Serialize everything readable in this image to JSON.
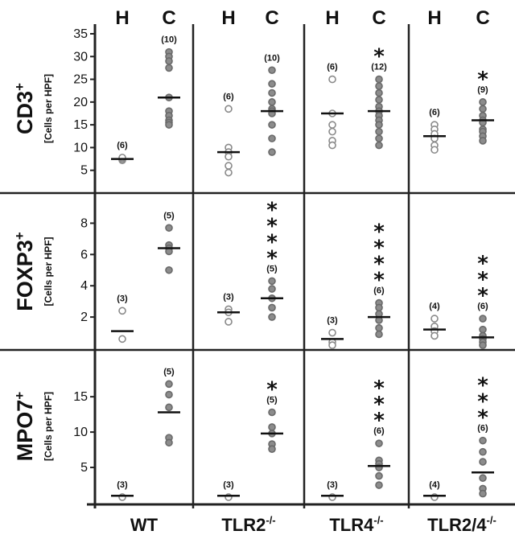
{
  "chart_data": {
    "type": "scatter",
    "title": "",
    "columns": [
      "H",
      "C"
    ],
    "groups": [
      {
        "name": "WT"
      },
      {
        "name": "TLR2",
        "sup": "-/-"
      },
      {
        "name": "TLR4",
        "sup": "-/-"
      },
      {
        "name": "TLR2/4",
        "sup": "-/-"
      }
    ],
    "legend": "none",
    "grid": false,
    "panels": [
      {
        "label": "CD3",
        "label_sup": "+",
        "unit": "[Cells per HPF]",
        "ylim": [
          0,
          35
        ],
        "ticks": [
          5,
          10,
          15,
          20,
          25,
          30,
          35
        ],
        "series": [
          {
            "group": "WT",
            "col": "H",
            "n": "(6)",
            "stars": 0,
            "mean": 7.5,
            "values": [
              7.2,
              7.5,
              7.8
            ]
          },
          {
            "group": "WT",
            "col": "C",
            "n": "(10)",
            "stars": 0,
            "mean": 21.0,
            "values": [
              31,
              30,
              29,
              27.5,
              21,
              18,
              17,
              16,
              15.5,
              15
            ]
          },
          {
            "group": "TLR2",
            "col": "H",
            "n": "(6)",
            "stars": 0,
            "mean": 9.0,
            "values": [
              18.5,
              10,
              9,
              8,
              6,
              4.5
            ]
          },
          {
            "group": "TLR2",
            "col": "C",
            "n": "(10)",
            "stars": 0,
            "mean": 18.0,
            "values": [
              27,
              24,
              22,
              20,
              18.5,
              18,
              17.5,
              15,
              12,
              9
            ]
          },
          {
            "group": "TLR4",
            "col": "H",
            "n": "(6)",
            "stars": 0,
            "mean": 17.5,
            "values": [
              25,
              17.5,
              15,
              13.5,
              11.5,
              10.5
            ]
          },
          {
            "group": "TLR4",
            "col": "C",
            "n": "(12)",
            "stars": 1,
            "mean": 18.0,
            "values": [
              25,
              23.5,
              22,
              20.5,
              19,
              18,
              17,
              16,
              15,
              13.5,
              12,
              10.5
            ]
          },
          {
            "group": "TLR2/4",
            "col": "H",
            "n": "(6)",
            "stars": 0,
            "mean": 12.5,
            "values": [
              15,
              14,
              13,
              12,
              10.5,
              9.5
            ]
          },
          {
            "group": "TLR2/4",
            "col": "C",
            "n": "(9)",
            "stars": 1,
            "mean": 16.0,
            "values": [
              20,
              18.5,
              17,
              16,
              15.5,
              14,
              13.5,
              12.5,
              11.5
            ]
          }
        ]
      },
      {
        "label": "FOXP3",
        "label_sup": "+",
        "unit": "[Cells per HPF]",
        "ylim": [
          0,
          9
        ],
        "ticks": [
          2,
          4,
          6,
          8
        ],
        "series": [
          {
            "group": "WT",
            "col": "H",
            "n": "(3)",
            "stars": 0,
            "mean": 1.1,
            "values": [
              2.4,
              0.6
            ]
          },
          {
            "group": "WT",
            "col": "C",
            "n": "(5)",
            "stars": 0,
            "mean": 6.4,
            "values": [
              7.7,
              6.6,
              6.4,
              6.2,
              5.0
            ]
          },
          {
            "group": "TLR2",
            "col": "H",
            "n": "(3)",
            "stars": 0,
            "mean": 2.3,
            "values": [
              2.5,
              2.3,
              1.7
            ]
          },
          {
            "group": "TLR2",
            "col": "C",
            "n": "(5)",
            "stars": 4,
            "mean": 3.2,
            "values": [
              4.3,
              3.8,
              3.2,
              2.6,
              2.0
            ]
          },
          {
            "group": "TLR4",
            "col": "H",
            "n": "(3)",
            "stars": 0,
            "mean": 0.6,
            "values": [
              1.0,
              0.4,
              0.2
            ]
          },
          {
            "group": "TLR4",
            "col": "C",
            "n": "(6)",
            "stars": 4,
            "mean": 2.0,
            "values": [
              2.9,
              2.6,
              2.2,
              1.8,
              1.3,
              0.9
            ]
          },
          {
            "group": "TLR2/4",
            "col": "H",
            "n": "(4)",
            "stars": 0,
            "mean": 1.2,
            "values": [
              1.9,
              1.4,
              1.1,
              0.8
            ]
          },
          {
            "group": "TLR2/4",
            "col": "C",
            "n": "(6)",
            "stars": 3,
            "mean": 0.7,
            "values": [
              1.9,
              1.2,
              0.8,
              0.6,
              0.4,
              0.2
            ]
          }
        ]
      },
      {
        "label": "MPO7",
        "label_sup": "+",
        "unit": "[Cells per HPF]",
        "ylim": [
          0,
          19
        ],
        "ticks": [
          5,
          10,
          15
        ],
        "series": [
          {
            "group": "WT",
            "col": "H",
            "n": "(3)",
            "stars": 0,
            "mean": 1.0,
            "values": [
              0.8
            ]
          },
          {
            "group": "WT",
            "col": "C",
            "n": "(5)",
            "stars": 0,
            "mean": 12.8,
            "values": [
              16.8,
              15.3,
              13.5,
              9.2,
              8.5
            ]
          },
          {
            "group": "TLR2",
            "col": "H",
            "n": "(3)",
            "stars": 0,
            "mean": 1.0,
            "values": [
              0.8
            ]
          },
          {
            "group": "TLR2",
            "col": "C",
            "n": "(5)",
            "stars": 1,
            "mean": 9.8,
            "values": [
              12.8,
              10.7,
              9.8,
              8.3,
              7.6
            ]
          },
          {
            "group": "TLR4",
            "col": "H",
            "n": "(3)",
            "stars": 0,
            "mean": 1.0,
            "values": [
              0.8
            ]
          },
          {
            "group": "TLR4",
            "col": "C",
            "n": "(6)",
            "stars": 3,
            "mean": 5.2,
            "values": [
              8.4,
              6.0,
              5.5,
              5.0,
              3.8,
              2.5
            ]
          },
          {
            "group": "TLR2/4",
            "col": "H",
            "n": "(4)",
            "stars": 0,
            "mean": 1.0,
            "values": [
              0.8
            ]
          },
          {
            "group": "TLR2/4",
            "col": "C",
            "n": "(6)",
            "stars": 3,
            "mean": 4.3,
            "values": [
              8.8,
              7.2,
              5.8,
              3.5,
              2.0,
              1.3
            ]
          }
        ]
      }
    ]
  },
  "colors": {
    "healthy_fill": "#ffffff",
    "healthy_stroke": "#8a8a8a",
    "colitis_fill": "#8c8c8c",
    "colitis_stroke": "#6a6a6a",
    "axis": "#222222",
    "mean_line": "#111111"
  }
}
